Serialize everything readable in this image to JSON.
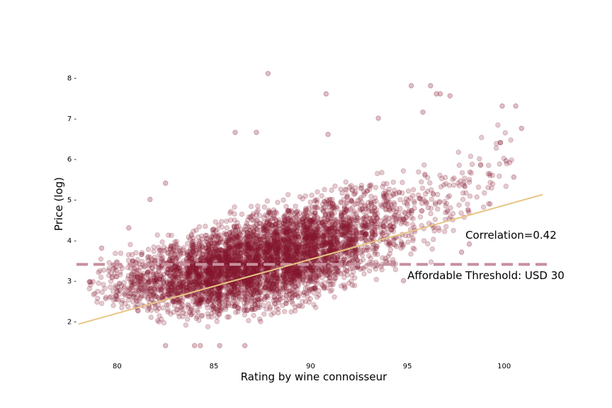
{
  "chart_data": {
    "type": "scatter",
    "title": "",
    "xlabel": "Rating by wine connoisseur",
    "ylabel": "Price (log)",
    "xlim": [
      77.9,
      102.5
    ],
    "ylim": [
      1.05,
      8.55
    ],
    "xticks": [
      80,
      85,
      90,
      95,
      100
    ],
    "yticks": [
      2,
      3,
      4,
      5,
      6,
      7,
      8
    ],
    "xtick_labels": [
      "80",
      "85",
      "90",
      "95",
      "100"
    ],
    "ytick_labels": [
      "2 -",
      "3 -",
      "4 -",
      "5 -",
      "6 -",
      "7 -",
      "8 -"
    ],
    "grid": false,
    "point_color": "#84152f",
    "point_alpha": 0.22,
    "scatter_bands": [
      {
        "rating": 79,
        "low": 2.0,
        "high": 3.7
      },
      {
        "rating": 80,
        "low": 1.9,
        "high": 3.9
      },
      {
        "rating": 81,
        "low": 1.9,
        "high": 4.0
      },
      {
        "rating": 82,
        "low": 1.7,
        "high": 4.2
      },
      {
        "rating": 83,
        "low": 1.7,
        "high": 4.4
      },
      {
        "rating": 84,
        "low": 1.7,
        "high": 4.5
      },
      {
        "rating": 85,
        "low": 1.7,
        "high": 4.7
      },
      {
        "rating": 86,
        "low": 1.8,
        "high": 4.9
      },
      {
        "rating": 87,
        "low": 1.8,
        "high": 5.0
      },
      {
        "rating": 88,
        "low": 1.9,
        "high": 5.2
      },
      {
        "rating": 89,
        "low": 2.0,
        "high": 5.3
      },
      {
        "rating": 90,
        "low": 2.1,
        "high": 5.4
      },
      {
        "rating": 91,
        "low": 2.3,
        "high": 5.5
      },
      {
        "rating": 92,
        "low": 2.5,
        "high": 5.7
      },
      {
        "rating": 93,
        "low": 2.6,
        "high": 5.9
      },
      {
        "rating": 94,
        "low": 2.8,
        "high": 6.0
      },
      {
        "rating": 95,
        "low": 3.1,
        "high": 6.2
      },
      {
        "rating": 96,
        "low": 3.3,
        "high": 6.3
      },
      {
        "rating": 97,
        "low": 3.6,
        "high": 6.3
      },
      {
        "rating": 98,
        "low": 4.0,
        "high": 6.5
      },
      {
        "rating": 99,
        "low": 4.3,
        "high": 6.7
      },
      {
        "rating": 100,
        "low": 4.8,
        "high": 7.3
      }
    ],
    "outliers": [
      {
        "x": 87.8,
        "y": 8.1
      },
      {
        "x": 90.8,
        "y": 7.6
      },
      {
        "x": 95.2,
        "y": 7.8
      },
      {
        "x": 96.2,
        "y": 7.8
      },
      {
        "x": 96.5,
        "y": 7.6
      },
      {
        "x": 96.7,
        "y": 7.6
      },
      {
        "x": 97.2,
        "y": 7.55
      },
      {
        "x": 99.9,
        "y": 7.3
      },
      {
        "x": 100.6,
        "y": 7.3
      },
      {
        "x": 95.8,
        "y": 7.15
      },
      {
        "x": 93.5,
        "y": 7.0
      },
      {
        "x": 100.9,
        "y": 6.75
      },
      {
        "x": 86.1,
        "y": 6.65
      },
      {
        "x": 87.2,
        "y": 6.65
      },
      {
        "x": 82.5,
        "y": 5.4
      },
      {
        "x": 81.7,
        "y": 5.0
      },
      {
        "x": 80.6,
        "y": 4.3
      },
      {
        "x": 79.2,
        "y": 3.8
      },
      {
        "x": 90.9,
        "y": 6.6
      },
      {
        "x": 100.5,
        "y": 5.55
      },
      {
        "x": 99.8,
        "y": 6.4
      },
      {
        "x": 100.1,
        "y": 5.95
      },
      {
        "x": 84.3,
        "y": 1.4
      },
      {
        "x": 85.3,
        "y": 1.4
      },
      {
        "x": 86.6,
        "y": 1.4
      },
      {
        "x": 82.5,
        "y": 1.4
      },
      {
        "x": 84.0,
        "y": 1.4
      },
      {
        "x": 94.8,
        "y": 3.0
      },
      {
        "x": 97.8,
        "y": 3.7
      },
      {
        "x": 98.2,
        "y": 3.9
      }
    ],
    "regression_line": {
      "x": [
        78,
        102
      ],
      "y": [
        1.93,
        5.12
      ],
      "color": "#e6c685"
    },
    "threshold_line": {
      "y": 3.4,
      "color": "#c7909f"
    },
    "annotations": [
      {
        "text": "Correlation=0.42",
        "x": 98.0,
        "y": 4.03
      },
      {
        "text": "Affordable Threshold: USD 30",
        "x": 95.0,
        "y": 3.04
      }
    ]
  }
}
